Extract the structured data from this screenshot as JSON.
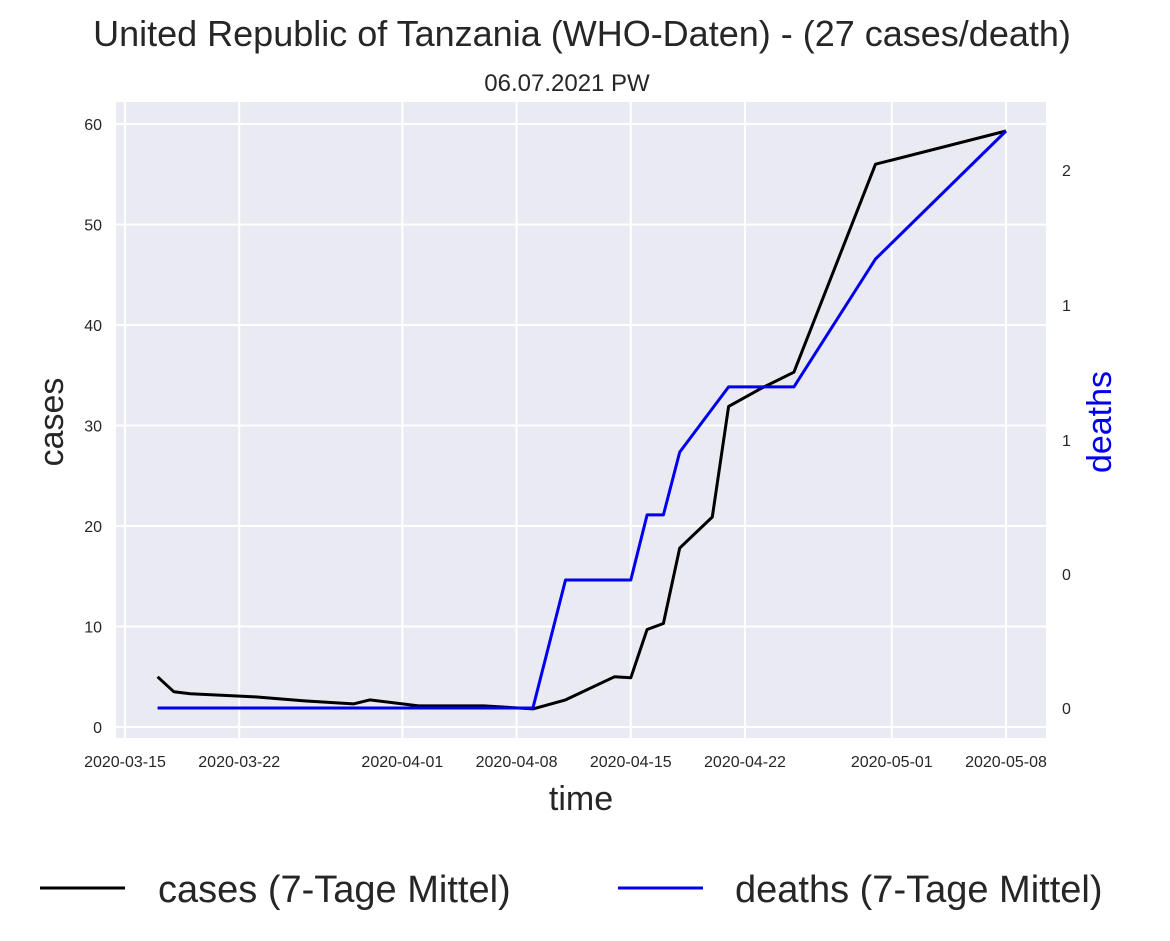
{
  "chart_data": {
    "type": "line",
    "title": "United Republic of Tanzania (WHO-Daten) - (27 cases/death)",
    "subtitle": "06.07.2021 PW",
    "xlabel": "time",
    "ylabel": "cases",
    "ylabel_right": "deaths",
    "grid": true,
    "legend_position": "bottom",
    "x_ticks": [
      "2020-03-15",
      "2020-03-22",
      "2020-04-01",
      "2020-04-08",
      "2020-04-15",
      "2020-04-22",
      "2020-05-01",
      "2020-05-08"
    ],
    "y_ticks": [
      0,
      10,
      20,
      30,
      40,
      50,
      60
    ],
    "y_right_ticks": [
      "0",
      "0",
      "1",
      "1",
      "2"
    ],
    "ylim": [
      -1,
      62
    ],
    "series": [
      {
        "name": "cases (7-Tage Mittel)",
        "color": "#000000",
        "axis": "left",
        "x": [
          "2020-03-17",
          "2020-03-18",
          "2020-03-19",
          "2020-03-23",
          "2020-03-26",
          "2020-03-29",
          "2020-03-30",
          "2020-04-02",
          "2020-04-06",
          "2020-04-09",
          "2020-04-11",
          "2020-04-14",
          "2020-04-15",
          "2020-04-16",
          "2020-04-17",
          "2020-04-18",
          "2020-04-20",
          "2020-04-21",
          "2020-04-23",
          "2020-04-25",
          "2020-04-30",
          "2020-05-08"
        ],
        "values": [
          5.0,
          3.5,
          3.3,
          3.0,
          2.6,
          2.3,
          2.7,
          2.1,
          2.1,
          1.8,
          2.7,
          5.0,
          4.9,
          9.7,
          10.3,
          17.8,
          20.9,
          31.9,
          33.7,
          35.3,
          56.0,
          59.3
        ]
      },
      {
        "name": "deaths (7-Tage Mittel)",
        "color": "#0000ee",
        "axis": "right",
        "x": [
          "2020-03-17",
          "2020-04-09",
          "2020-04-11",
          "2020-04-15",
          "2020-04-16",
          "2020-04-17",
          "2020-04-18",
          "2020-04-21",
          "2020-04-25",
          "2020-04-30",
          "2020-05-08"
        ],
        "values": [
          0.0,
          0.0,
          0.57,
          0.57,
          0.86,
          0.86,
          1.14,
          1.43,
          1.43,
          2.0,
          2.57
        ]
      }
    ]
  }
}
